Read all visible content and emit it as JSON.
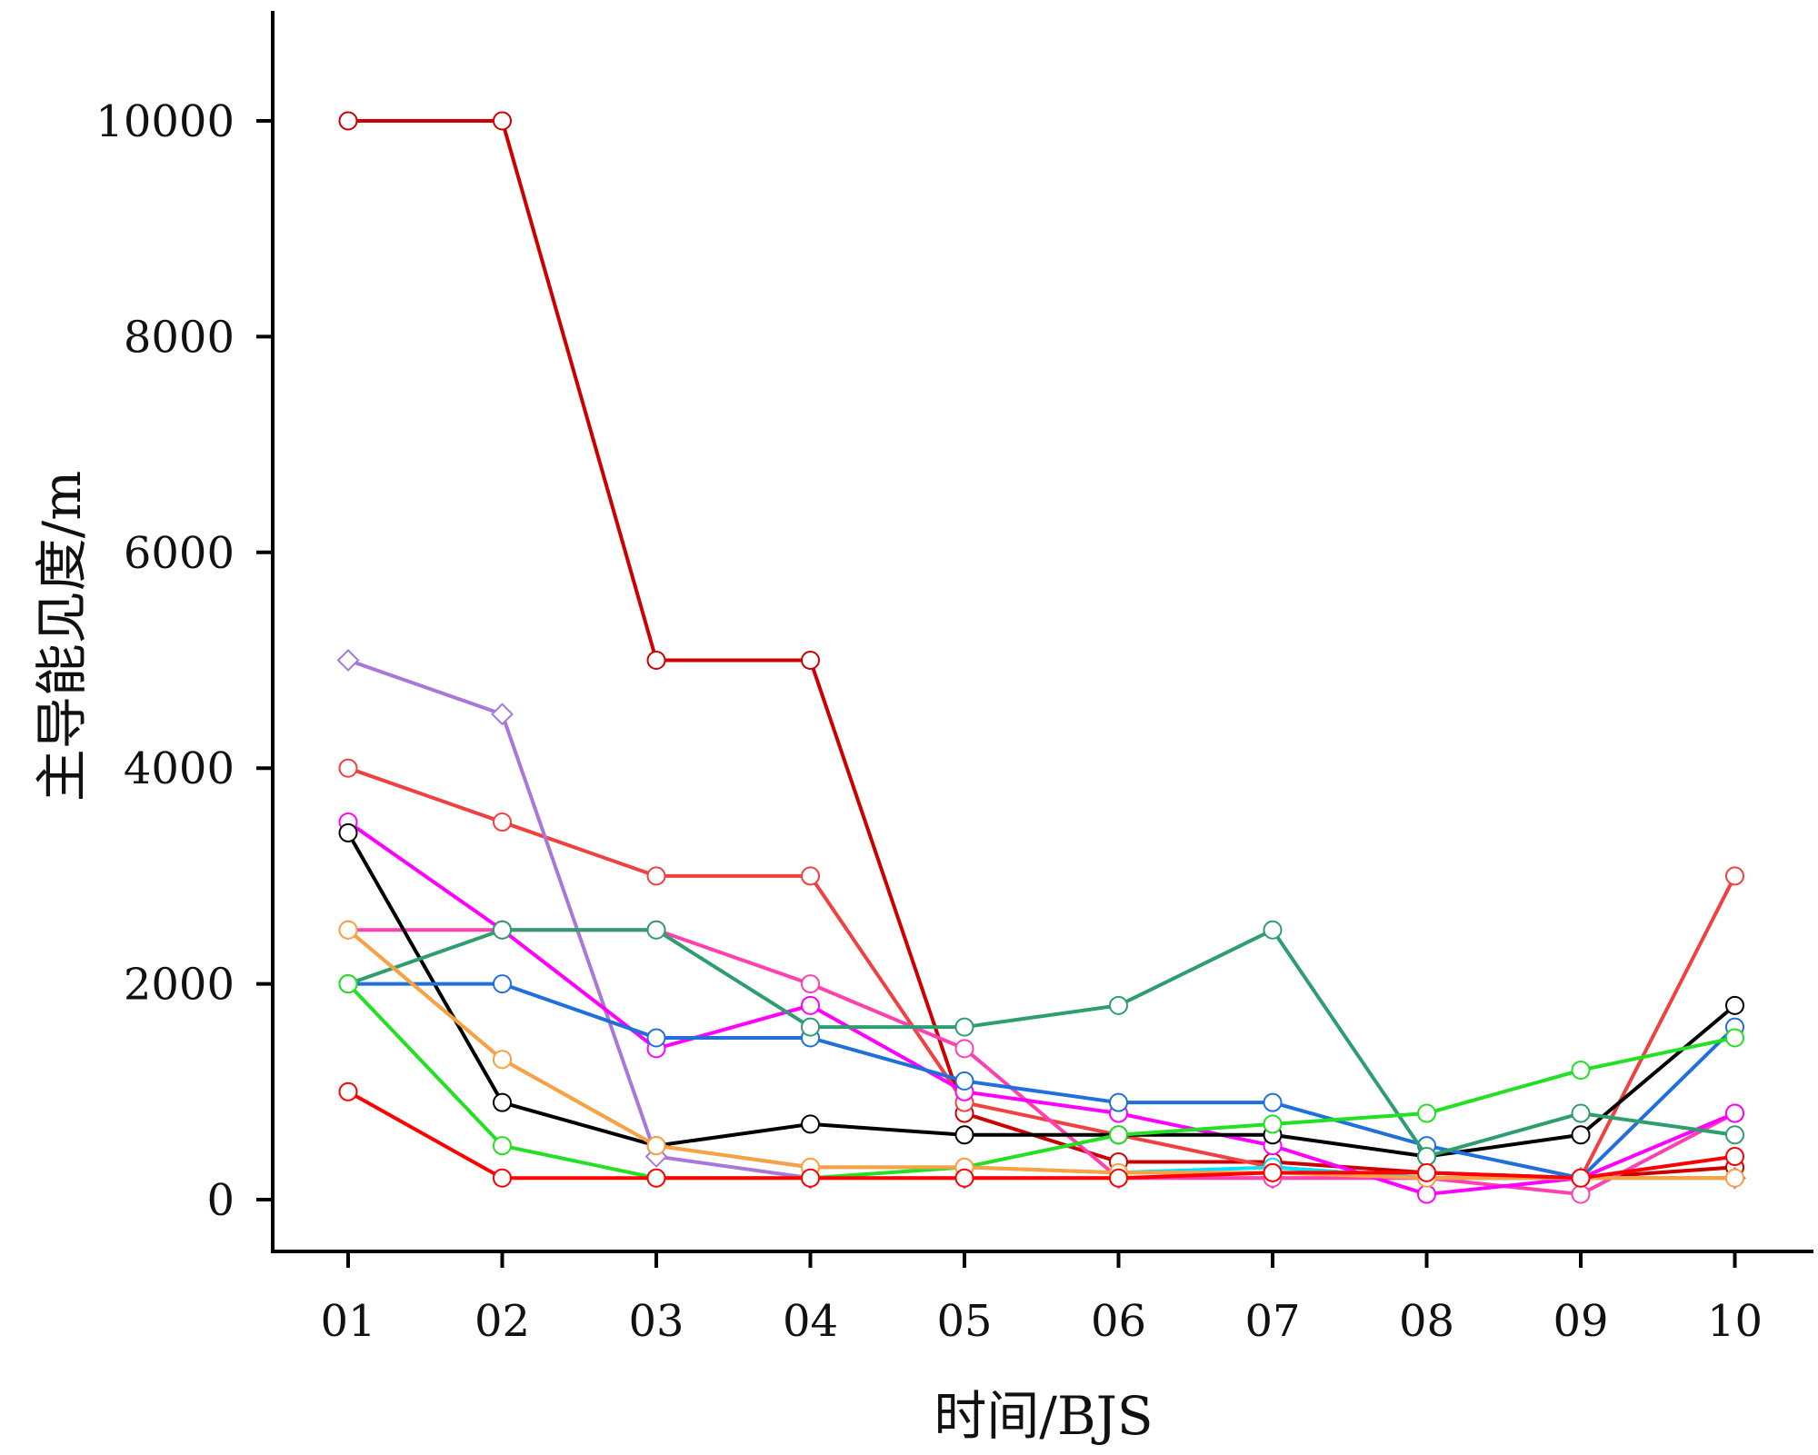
{
  "chart_data": {
    "type": "line",
    "title": "",
    "xlabel": "时间/BJS",
    "ylabel": "主导能见度/m",
    "categories": [
      "01",
      "02",
      "03",
      "04",
      "05",
      "06",
      "07",
      "08",
      "09",
      "10"
    ],
    "ylim": [
      -500,
      11000
    ],
    "yticks": [
      0,
      2000,
      4000,
      6000,
      8000,
      10000
    ],
    "ytick_labels": [
      "0",
      "2000",
      "4000",
      "6000",
      "8000",
      "10000"
    ],
    "grid": false,
    "legend": "none",
    "series": [
      {
        "color": "#cc0000",
        "marker": "circle",
        "values": [
          10000,
          10000,
          5000,
          5000,
          800,
          350,
          350,
          250,
          200,
          300
        ]
      },
      {
        "color": "#f04040",
        "marker": "circle",
        "values": [
          4000,
          3500,
          3000,
          3000,
          900,
          600,
          300,
          200,
          200,
          3000
        ]
      },
      {
        "color": "#a878d8",
        "marker": "diamond",
        "values": [
          5000,
          4500,
          400,
          200,
          200,
          200,
          200,
          200,
          200,
          200
        ]
      },
      {
        "color": "#ff40b0",
        "marker": "circle",
        "values": [
          2500,
          2500,
          2500,
          2000,
          1400,
          200,
          200,
          200,
          50,
          800
        ]
      },
      {
        "color": "#ff00ff",
        "marker": "circle",
        "values": [
          3500,
          2500,
          1400,
          1800,
          1000,
          800,
          500,
          50,
          200,
          800
        ]
      },
      {
        "color": "#000000",
        "marker": "circle",
        "values": [
          3400,
          900,
          500,
          700,
          600,
          600,
          600,
          400,
          600,
          1800
        ]
      },
      {
        "color": "#1f6fdc",
        "marker": "circle",
        "values": [
          2000,
          2000,
          1500,
          1500,
          1100,
          900,
          900,
          500,
          200,
          1600
        ]
      },
      {
        "color": "#2e9e6e",
        "marker": "circle",
        "values": [
          2000,
          2500,
          2500,
          1600,
          1600,
          1800,
          2500,
          400,
          800,
          600
        ]
      },
      {
        "color": "#22e022",
        "marker": "circle",
        "values": [
          2000,
          500,
          200,
          200,
          300,
          600,
          700,
          800,
          1200,
          1500
        ]
      },
      {
        "color": "#00e5ff",
        "marker": "circle",
        "values": [
          2500,
          1300,
          500,
          300,
          300,
          250,
          300,
          200,
          200,
          200
        ]
      },
      {
        "color": "#ffa040",
        "marker": "circle",
        "values": [
          2500,
          1300,
          500,
          300,
          300,
          250,
          250,
          200,
          200,
          200
        ]
      },
      {
        "color": "#ff0000",
        "marker": "circle",
        "values": [
          1000,
          200,
          200,
          200,
          200,
          200,
          250,
          250,
          200,
          400
        ]
      }
    ]
  }
}
